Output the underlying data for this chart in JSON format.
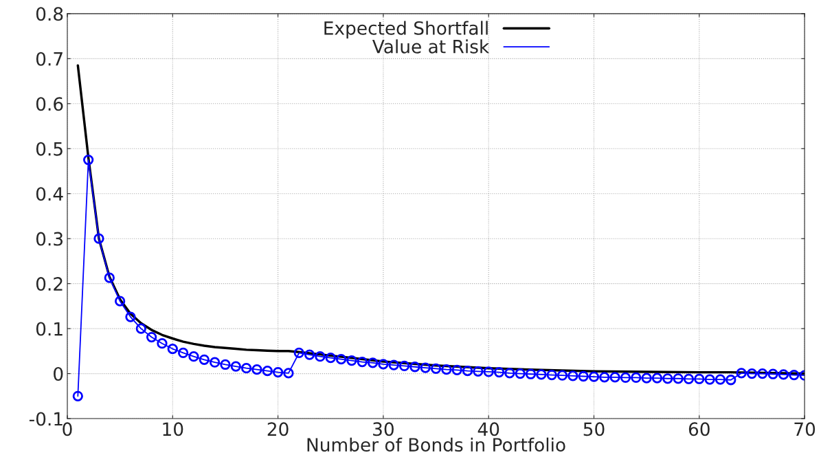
{
  "chart_data": {
    "type": "line",
    "xlabel": "Number of Bonds in Portfolio",
    "xlim": [
      0,
      70
    ],
    "xticks": [
      0,
      10,
      20,
      30,
      40,
      50,
      60,
      70
    ],
    "ylim": [
      -0.1,
      0.8
    ],
    "yticks": [
      -0.1,
      0,
      0.1,
      0.2,
      0.3,
      0.4,
      0.5,
      0.6,
      0.7,
      0.8
    ],
    "grid": true,
    "legend": "top",
    "series": [
      {
        "name": "Expected Shortfall",
        "color": "#000000",
        "marker": "none",
        "x": [
          1,
          2,
          3,
          4,
          5,
          6,
          7,
          8,
          9,
          10,
          11,
          12,
          13,
          14,
          15,
          16,
          17,
          18,
          19,
          20,
          21,
          22,
          25,
          30,
          35,
          40,
          45,
          50,
          55,
          60,
          63,
          65,
          70
        ],
        "values": [
          0.685,
          0.48,
          0.3,
          0.215,
          0.165,
          0.133,
          0.112,
          0.097,
          0.086,
          0.078,
          0.071,
          0.066,
          0.062,
          0.059,
          0.057,
          0.055,
          0.053,
          0.052,
          0.051,
          0.05,
          0.05,
          0.048,
          0.04,
          0.027,
          0.018,
          0.012,
          0.008,
          0.005,
          0.004,
          0.003,
          0.003,
          0.002,
          0.0
        ]
      },
      {
        "name": "Value at Risk",
        "color": "#0000ff",
        "marker": "circle",
        "x": [
          1,
          2,
          3,
          4,
          5,
          6,
          7,
          8,
          9,
          10,
          11,
          12,
          13,
          14,
          15,
          16,
          17,
          18,
          19,
          20,
          21,
          22,
          23,
          24,
          25,
          26,
          27,
          28,
          29,
          30,
          31,
          32,
          33,
          34,
          35,
          36,
          37,
          38,
          39,
          40,
          41,
          42,
          43,
          44,
          45,
          46,
          47,
          48,
          49,
          50,
          51,
          52,
          53,
          54,
          55,
          56,
          57,
          58,
          59,
          60,
          61,
          62,
          63,
          64,
          65,
          66,
          67,
          68,
          69,
          70
        ],
        "values": [
          -0.05,
          0.475,
          0.3,
          0.213,
          0.161,
          0.126,
          0.1,
          0.081,
          0.067,
          0.055,
          0.046,
          0.038,
          0.031,
          0.025,
          0.02,
          0.016,
          0.012,
          0.009,
          0.006,
          0.003,
          0.001,
          0.046,
          0.042,
          0.038,
          0.035,
          0.032,
          0.029,
          0.026,
          0.024,
          0.021,
          0.019,
          0.017,
          0.015,
          0.013,
          0.011,
          0.009,
          0.008,
          0.006,
          0.005,
          0.004,
          0.003,
          0.001,
          0.0,
          -0.001,
          -0.002,
          -0.003,
          -0.004,
          -0.005,
          -0.006,
          -0.007,
          -0.008,
          -0.008,
          -0.009,
          -0.009,
          -0.01,
          -0.01,
          -0.011,
          -0.011,
          -0.012,
          -0.012,
          -0.013,
          -0.013,
          -0.014,
          0.001,
          0.0,
          0.0,
          -0.001,
          -0.002,
          -0.003,
          -0.004
        ]
      }
    ]
  }
}
